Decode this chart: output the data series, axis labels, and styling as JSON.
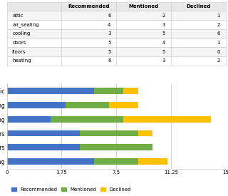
{
  "categories": [
    "attic",
    "air_sealing",
    "cooling",
    "doors",
    "floors",
    "heating"
  ],
  "recommended": [
    6,
    4,
    3,
    5,
    5,
    6
  ],
  "mentioned": [
    2,
    3,
    5,
    4,
    5,
    3
  ],
  "declined": [
    1,
    2,
    6,
    1,
    0,
    2
  ],
  "colors": {
    "recommended": "#4472C4",
    "mentioned": "#70AD47",
    "declined": "#FFC000"
  },
  "xticks": [
    0,
    3.75,
    7.5,
    11.25,
    15
  ],
  "xtick_labels": [
    "0",
    "3.75",
    "7.5",
    "11.25",
    "15"
  ],
  "chart_bg": "#ffffff",
  "bar_area_bg": "#ffffff",
  "table_header_bg": "#e8e8e8",
  "table_row_odd": "#f5f5f5",
  "table_row_even": "#ffffff",
  "legend_labels": [
    "Recommended",
    "Mentioned",
    "Declined"
  ]
}
